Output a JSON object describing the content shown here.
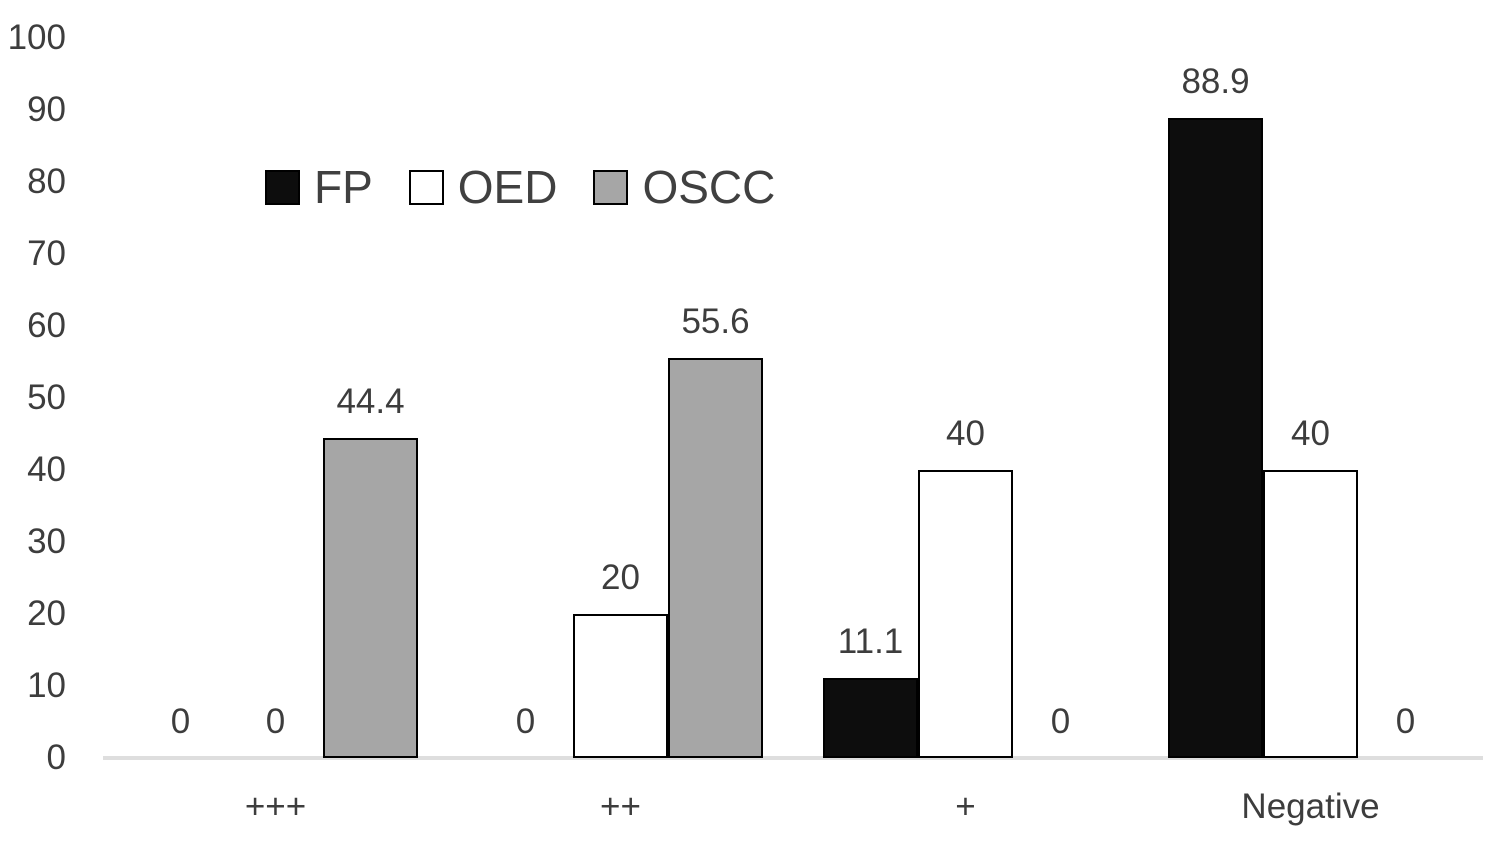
{
  "chart_data": {
    "type": "bar",
    "categories": [
      "+++",
      "++",
      "+",
      "Negative"
    ],
    "series": [
      {
        "name": "FP",
        "fill": "#0d0d0d",
        "values": [
          0,
          0,
          11.1,
          88.9
        ],
        "labels": [
          "0",
          "0",
          "11.1",
          "88.9"
        ]
      },
      {
        "name": "OED",
        "fill": "#ffffff",
        "values": [
          0,
          20,
          40,
          40
        ],
        "labels": [
          "0",
          "20",
          "40",
          "40"
        ]
      },
      {
        "name": "OSCC",
        "fill": "#a6a6a6",
        "values": [
          44.4,
          55.6,
          0,
          0
        ],
        "labels": [
          "44.4",
          "55.6",
          "0",
          "0"
        ]
      }
    ],
    "ylim": [
      0,
      100
    ],
    "yticks": [
      0,
      10,
      20,
      30,
      40,
      50,
      60,
      70,
      80,
      90,
      100
    ],
    "grid": false,
    "legend_position": "inset-top-left",
    "legend_entries": [
      "FP",
      "OED",
      "OSCC"
    ],
    "bar_border_color": "#000000",
    "axis_line_color": "#dedede",
    "text_color": "#3d3d3d"
  }
}
